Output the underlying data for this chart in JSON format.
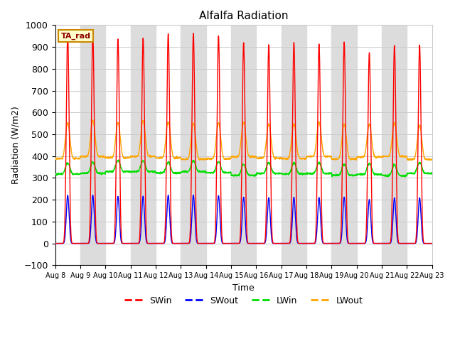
{
  "title": "Alfalfa Radiation",
  "xlabel": "Time",
  "ylabel": "Radiation (W/m2)",
  "ylim": [
    -100,
    1000
  ],
  "yticks": [
    -100,
    0,
    100,
    200,
    300,
    400,
    500,
    600,
    700,
    800,
    900,
    1000
  ],
  "colors": {
    "SWin": "#ff0000",
    "SWout": "#0000ff",
    "LWin": "#00dd00",
    "LWout": "#ffa500"
  },
  "legend_label": "TA_rad",
  "n_days": 15,
  "start_day": 8,
  "ppd": 144,
  "background_color": "#ffffff",
  "band_color": "#dcdcdc",
  "SWin_peaks": [
    960,
    962,
    938,
    942,
    962,
    964,
    952,
    921,
    912,
    922,
    915,
    924,
    875,
    908,
    910
  ],
  "LWout_night": 390,
  "LWin_base": 315,
  "grid_color": "#cccccc"
}
